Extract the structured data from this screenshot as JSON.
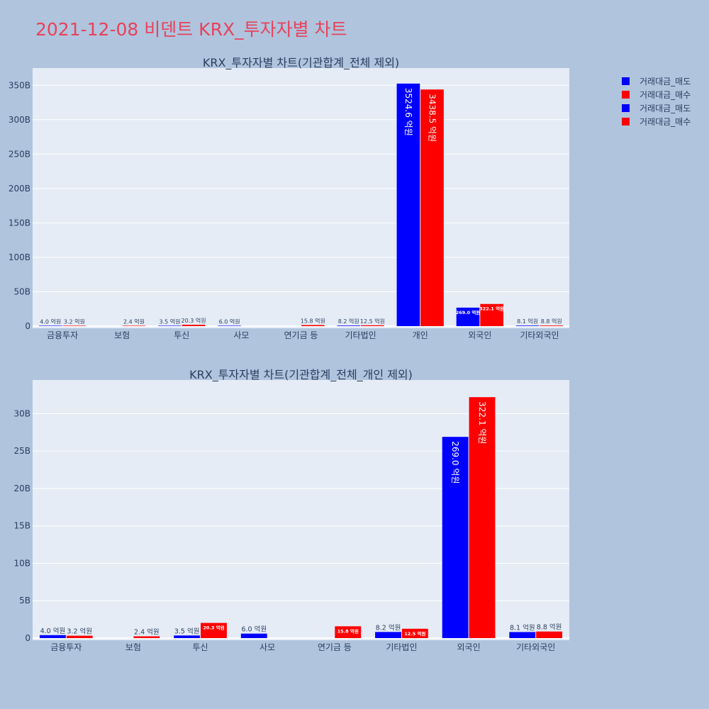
{
  "title": "2021-12-08 비덴트 KRX_투자자별 차트",
  "legend": [
    {
      "label": "거래대금_매도",
      "color": "#0000ff"
    },
    {
      "label": "거래대금_매수",
      "color": "#ff0000"
    },
    {
      "label": "거래대금_매도",
      "color": "#0000ff"
    },
    {
      "label": "거래대금_매수",
      "color": "#ff0000"
    }
  ],
  "chart_data": [
    {
      "type": "bar",
      "title": "KRX_투자자별 차트(기관합계_전체 제외)",
      "categories": [
        "금융투자",
        "보험",
        "투신",
        "사모",
        "연기금 등",
        "기타법인",
        "개인",
        "외국인",
        "기타외국인"
      ],
      "yticks": [
        "0",
        "50B",
        "100B",
        "150B",
        "200B",
        "250B",
        "300B",
        "350B"
      ],
      "ylim": [
        0,
        375
      ],
      "yunit": "B",
      "grid": true,
      "legend_position": "top-right",
      "series": [
        {
          "name": "거래대금_매도",
          "color": "#0000ff",
          "values": [
            0.4,
            null,
            0.35,
            0.6,
            null,
            0.82,
            352.46,
            26.9,
            0.81
          ],
          "labels": [
            "4.0 억원",
            "",
            "3.5 억원",
            "6.0 억원",
            "",
            "8.2 억원",
            "3524.6 억원",
            "269.0 억원",
            "8.1 억원"
          ]
        },
        {
          "name": "거래대금_매수",
          "color": "#ff0000",
          "values": [
            0.32,
            0.24,
            2.03,
            null,
            1.58,
            1.25,
            343.85,
            32.21,
            0.88
          ],
          "labels": [
            "3.2 억원",
            "2.4 억원",
            "20.3 억원",
            "",
            "15.8 억원",
            "12.5 억원",
            "3438.5 억원",
            "322.1 억원",
            "8.8 억원"
          ]
        }
      ]
    },
    {
      "type": "bar",
      "title": "KRX_투자자별 차트(기관합계_전체_개인 제외)",
      "categories": [
        "금융투자",
        "보험",
        "투신",
        "사모",
        "연기금 등",
        "기타법인",
        "외국인",
        "기타외국인"
      ],
      "yticks": [
        "0",
        "5B",
        "10B",
        "15B",
        "20B",
        "25B",
        "30B"
      ],
      "ylim": [
        0,
        34.5
      ],
      "yunit": "B",
      "grid": true,
      "legend_position": "top-right",
      "series": [
        {
          "name": "거래대금_매도",
          "color": "#0000ff",
          "values": [
            0.4,
            null,
            0.35,
            0.6,
            null,
            0.82,
            26.9,
            0.81
          ],
          "labels": [
            "4.0 억원",
            "",
            "3.5 억원",
            "6.0 억원",
            "",
            "8.2 억원",
            "269.0 억원",
            "8.1 억원"
          ]
        },
        {
          "name": "거래대금_매수",
          "color": "#ff0000",
          "values": [
            0.32,
            0.24,
            2.03,
            null,
            1.58,
            1.25,
            32.21,
            0.88
          ],
          "labels": [
            "3.2 억원",
            "2.4 억원",
            "20.3 억원",
            "",
            "15.8 억원",
            "12.5 억원",
            "322.1 억원",
            "8.8 억원"
          ]
        }
      ]
    }
  ]
}
